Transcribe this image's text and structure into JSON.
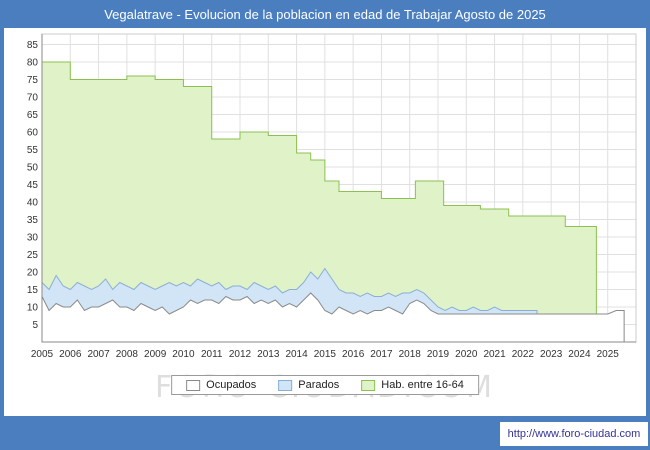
{
  "title_bar": {
    "title": "Vegalatrave - Evolucion de la poblacion en edad de Trabajar Agosto de 2025",
    "bg_color": "#4a7ebf",
    "text_color": "#ffffff"
  },
  "watermark": "FORO-CIUDAD.COM",
  "footer": {
    "url": "http://www.foro-ciudad.com",
    "url_color": "#333399"
  },
  "legend": [
    {
      "label": "Ocupados",
      "fill": "#ffffff",
      "stroke": "#8a8a8a"
    },
    {
      "label": "Parados",
      "fill": "#d2e5f6",
      "stroke": "#8aafd4"
    },
    {
      "label": "Hab. entre 16-64",
      "fill": "#dff2c8",
      "stroke": "#8cc152"
    }
  ],
  "chart_data": {
    "type": "area",
    "title": "Vegalatrave - Evolucion de la poblacion en edad de Trabajar Agosto de 2025",
    "xlabel": "",
    "ylabel": "",
    "xlim": [
      2005,
      2026
    ],
    "ylim": [
      0,
      88
    ],
    "xticks": [
      2005,
      2006,
      2007,
      2008,
      2009,
      2010,
      2011,
      2012,
      2013,
      2014,
      2015,
      2016,
      2017,
      2018,
      2019,
      2020,
      2021,
      2022,
      2023,
      2024,
      2025
    ],
    "yticks": [
      5,
      10,
      15,
      20,
      25,
      30,
      35,
      40,
      45,
      50,
      55,
      60,
      65,
      70,
      75,
      80,
      85
    ],
    "grid": true,
    "legend_position": "bottom",
    "grid_color": "#e0e0e0",
    "axis_color": "#8a8a8a",
    "plot_border_color": "#cccccc",
    "series": [
      {
        "name": "Hab. entre 16-64",
        "draw": "step-area",
        "fill": "#dff2c8",
        "stroke": "#8cc152",
        "end_x": 2024.6,
        "points": [
          [
            2005,
            80
          ],
          [
            2006,
            75
          ],
          [
            2008,
            76
          ],
          [
            2009,
            75
          ],
          [
            2010,
            73
          ],
          [
            2011,
            58
          ],
          [
            2012,
            60
          ],
          [
            2013,
            59
          ],
          [
            2014,
            54
          ],
          [
            2014.5,
            52
          ],
          [
            2015,
            46
          ],
          [
            2015.5,
            43
          ],
          [
            2017,
            41
          ],
          [
            2018.2,
            46
          ],
          [
            2019.2,
            39
          ],
          [
            2020.5,
            38
          ],
          [
            2021.5,
            36
          ],
          [
            2023.5,
            33
          ]
        ]
      },
      {
        "name": "Parados",
        "draw": "area",
        "fill": "#d2e5f6",
        "stroke": "#8aafd4",
        "points": [
          [
            2005,
            17
          ],
          [
            2005.25,
            15
          ],
          [
            2005.5,
            19
          ],
          [
            2005.75,
            16
          ],
          [
            2006,
            15
          ],
          [
            2006.25,
            17
          ],
          [
            2006.5,
            16
          ],
          [
            2006.75,
            15
          ],
          [
            2007,
            16
          ],
          [
            2007.25,
            18
          ],
          [
            2007.5,
            15
          ],
          [
            2007.75,
            17
          ],
          [
            2008,
            16
          ],
          [
            2008.25,
            15
          ],
          [
            2008.5,
            17
          ],
          [
            2008.75,
            16
          ],
          [
            2009,
            15
          ],
          [
            2009.25,
            16
          ],
          [
            2009.5,
            17
          ],
          [
            2009.75,
            16
          ],
          [
            2010,
            17
          ],
          [
            2010.25,
            16
          ],
          [
            2010.5,
            18
          ],
          [
            2010.75,
            17
          ],
          [
            2011,
            16
          ],
          [
            2011.25,
            17
          ],
          [
            2011.5,
            15
          ],
          [
            2011.75,
            16
          ],
          [
            2012,
            16
          ],
          [
            2012.25,
            15
          ],
          [
            2012.5,
            17
          ],
          [
            2012.75,
            16
          ],
          [
            2013,
            15
          ],
          [
            2013.25,
            16
          ],
          [
            2013.5,
            14
          ],
          [
            2013.75,
            15
          ],
          [
            2014,
            15
          ],
          [
            2014.25,
            17
          ],
          [
            2014.5,
            20
          ],
          [
            2014.75,
            18
          ],
          [
            2015,
            21
          ],
          [
            2015.25,
            18
          ],
          [
            2015.5,
            15
          ],
          [
            2015.75,
            14
          ],
          [
            2016,
            14
          ],
          [
            2016.25,
            13
          ],
          [
            2016.5,
            14
          ],
          [
            2016.75,
            13
          ],
          [
            2017,
            13
          ],
          [
            2017.25,
            14
          ],
          [
            2017.5,
            13
          ],
          [
            2017.75,
            14
          ],
          [
            2018,
            14
          ],
          [
            2018.25,
            15
          ],
          [
            2018.5,
            14
          ],
          [
            2018.75,
            12
          ],
          [
            2019,
            10
          ],
          [
            2019.25,
            9
          ],
          [
            2019.5,
            10
          ],
          [
            2019.75,
            9
          ],
          [
            2020,
            9
          ],
          [
            2020.25,
            10
          ],
          [
            2020.5,
            9
          ],
          [
            2020.75,
            9
          ],
          [
            2021,
            10
          ],
          [
            2021.25,
            9
          ],
          [
            2021.5,
            9
          ],
          [
            2021.75,
            9
          ],
          [
            2022,
            9
          ],
          [
            2022.25,
            9
          ],
          [
            2022.5,
            9
          ]
        ]
      },
      {
        "name": "Ocupados",
        "draw": "area",
        "fill": "#ffffff",
        "stroke": "#8a8a8a",
        "points": [
          [
            2005,
            13
          ],
          [
            2005.25,
            9
          ],
          [
            2005.5,
            11
          ],
          [
            2005.75,
            10
          ],
          [
            2006,
            10
          ],
          [
            2006.25,
            12
          ],
          [
            2006.5,
            9
          ],
          [
            2006.75,
            10
          ],
          [
            2007,
            10
          ],
          [
            2007.25,
            11
          ],
          [
            2007.5,
            12
          ],
          [
            2007.75,
            10
          ],
          [
            2008,
            10
          ],
          [
            2008.25,
            9
          ],
          [
            2008.5,
            11
          ],
          [
            2008.75,
            10
          ],
          [
            2009,
            9
          ],
          [
            2009.25,
            10
          ],
          [
            2009.5,
            8
          ],
          [
            2009.75,
            9
          ],
          [
            2010,
            10
          ],
          [
            2010.25,
            12
          ],
          [
            2010.5,
            11
          ],
          [
            2010.75,
            12
          ],
          [
            2011,
            12
          ],
          [
            2011.25,
            11
          ],
          [
            2011.5,
            13
          ],
          [
            2011.75,
            12
          ],
          [
            2012,
            12
          ],
          [
            2012.25,
            13
          ],
          [
            2012.5,
            11
          ],
          [
            2012.75,
            12
          ],
          [
            2013,
            11
          ],
          [
            2013.25,
            12
          ],
          [
            2013.5,
            10
          ],
          [
            2013.75,
            11
          ],
          [
            2014,
            10
          ],
          [
            2014.25,
            12
          ],
          [
            2014.5,
            14
          ],
          [
            2014.75,
            12
          ],
          [
            2015,
            9
          ],
          [
            2015.25,
            8
          ],
          [
            2015.5,
            10
          ],
          [
            2015.75,
            9
          ],
          [
            2016,
            8
          ],
          [
            2016.25,
            9
          ],
          [
            2016.5,
            8
          ],
          [
            2016.75,
            9
          ],
          [
            2017,
            9
          ],
          [
            2017.25,
            10
          ],
          [
            2017.5,
            9
          ],
          [
            2017.75,
            8
          ],
          [
            2018,
            11
          ],
          [
            2018.25,
            12
          ],
          [
            2018.5,
            11
          ],
          [
            2018.75,
            9
          ],
          [
            2019,
            8
          ],
          [
            2019.5,
            8
          ],
          [
            2020,
            8
          ],
          [
            2020.5,
            8
          ],
          [
            2021,
            8
          ],
          [
            2021.5,
            8
          ],
          [
            2022,
            8
          ],
          [
            2022.5,
            8
          ],
          [
            2023,
            8
          ],
          [
            2023.5,
            8
          ],
          [
            2024,
            8
          ],
          [
            2024.5,
            8
          ],
          [
            2025,
            8
          ],
          [
            2025.3,
            9
          ],
          [
            2025.58,
            9
          ]
        ]
      }
    ]
  }
}
